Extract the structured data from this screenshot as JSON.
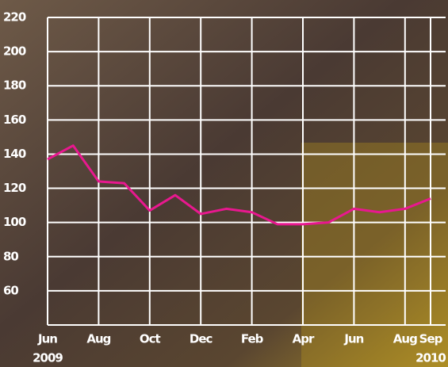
{
  "chart_data": {
    "type": "line",
    "x": [
      "2009-06",
      "2009-07",
      "2009-08",
      "2009-09",
      "2009-10",
      "2009-11",
      "2009-12",
      "2010-01",
      "2010-02",
      "2010-03",
      "2010-04",
      "2010-05",
      "2010-06",
      "2010-07",
      "2010-08",
      "2010-09"
    ],
    "series": [
      {
        "color": "#e8188f",
        "values": [
          137,
          145,
          124,
          123,
          107,
          116,
          105,
          108,
          106,
          99,
          99,
          100,
          108,
          106,
          108,
          114
        ]
      }
    ],
    "xlim": [
      "2009-06",
      "2010-09"
    ],
    "xticks": [
      {
        "value": "2009-06",
        "label": "Jun"
      },
      {
        "value": "2009-08",
        "label": "Aug"
      },
      {
        "value": "2009-10",
        "label": "Oct"
      },
      {
        "value": "2009-12",
        "label": "Dec"
      },
      {
        "value": "2010-02",
        "label": "Feb"
      },
      {
        "value": "2010-04",
        "label": "Apr"
      },
      {
        "value": "2010-06",
        "label": "Jun"
      },
      {
        "value": "2010-08",
        "label": "Aug"
      },
      {
        "value": "2010-09",
        "label": "Sep"
      }
    ],
    "x_year_labels": [
      {
        "value": "2009-06",
        "label": "2009"
      },
      {
        "value": "2010-09",
        "label": "2010"
      }
    ],
    "ylim": [
      40,
      220
    ],
    "yticks": [
      60,
      80,
      100,
      120,
      140,
      160,
      180,
      200,
      220
    ],
    "grid": true
  }
}
